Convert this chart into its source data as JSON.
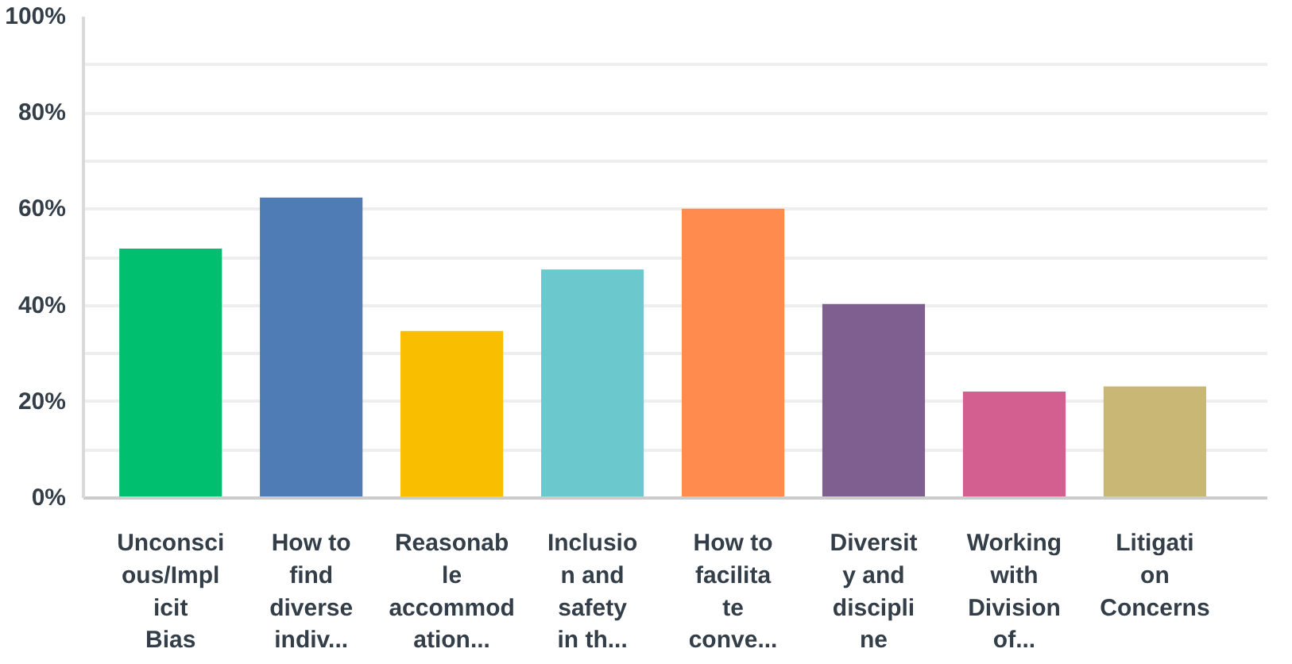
{
  "chart_data": {
    "type": "bar",
    "categories": [
      "Unconsci\nous/Impl\nicit\nBias",
      "How to\nfind\ndiverse\nindiv...",
      "Reasonab\nle\naccommod\nation...",
      "Inclusio\nn and\nsafety\nin th...",
      "How to\nfacilita\nte\nconve...",
      "Diversit\ny and\ndiscipli\nne",
      "Working\nwith\nDivision\nof...",
      "Litigati\non\nConcerns"
    ],
    "values": [
      51.8,
      62.4,
      34.7,
      47.5,
      60.1,
      40.3,
      22.1,
      23.2
    ],
    "colors": [
      "#00bf6f",
      "#507cb6",
      "#f9be00",
      "#6bc8cd",
      "#ff8b4f",
      "#7f5f90",
      "#d25f90",
      "#c9b776"
    ],
    "ylim": [
      0,
      100
    ],
    "yticks": [
      {
        "value": 0,
        "label": "0%"
      },
      {
        "value": 10,
        "label": null
      },
      {
        "value": 20,
        "label": "20%"
      },
      {
        "value": 30,
        "label": null
      },
      {
        "value": 40,
        "label": "40%"
      },
      {
        "value": 50,
        "label": null
      },
      {
        "value": 60,
        "label": "60%"
      },
      {
        "value": 70,
        "label": null
      },
      {
        "value": 80,
        "label": "80%"
      },
      {
        "value": 90,
        "label": null
      },
      {
        "value": 100,
        "label": "100%"
      }
    ],
    "grid": "y"
  }
}
